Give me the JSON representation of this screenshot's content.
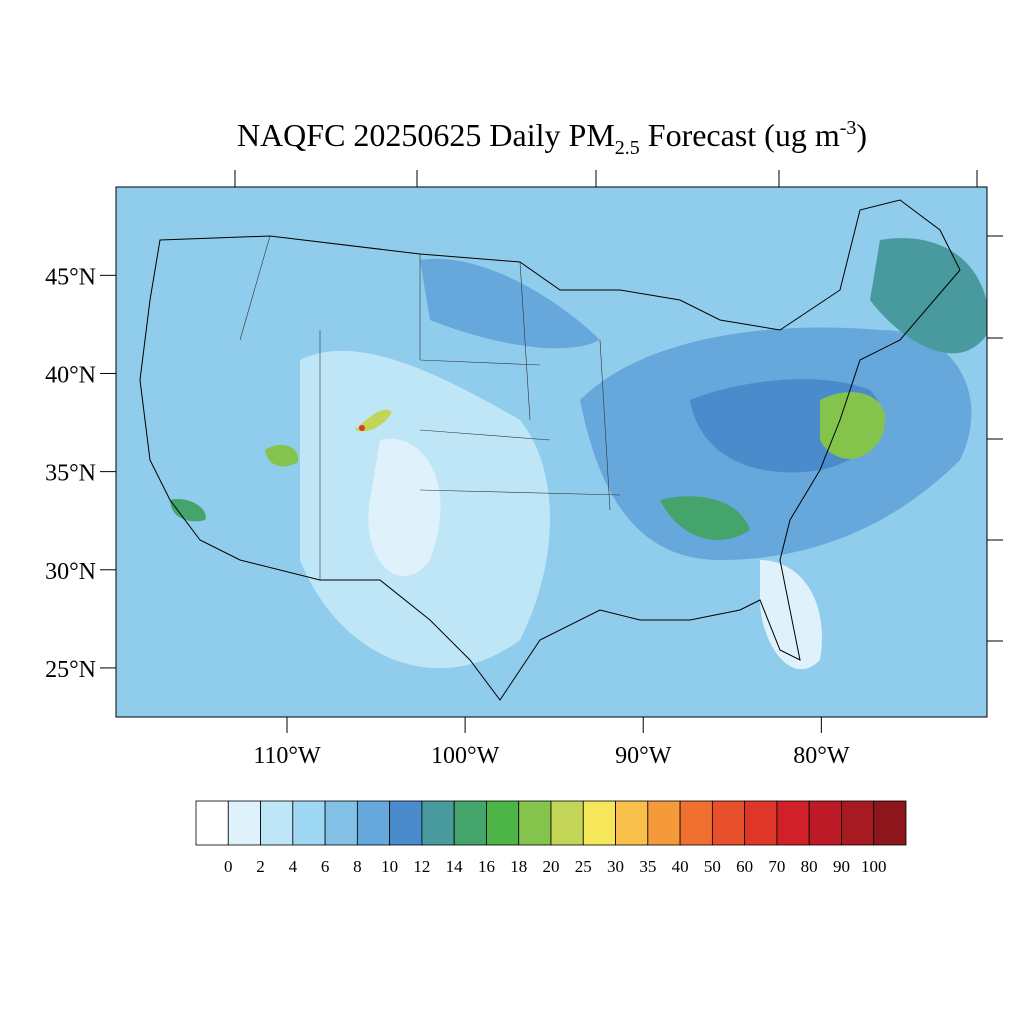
{
  "chart_data": {
    "type": "map",
    "title": {
      "main": "NAQFC 20250625 Daily PM",
      "subscript": "2.5",
      "middle": " Forecast (ug m",
      "superscript": "-3",
      "end": ")"
    },
    "xlim": [
      -119.6,
      -70.7
    ],
    "ylim": [
      22.5,
      49.5
    ],
    "yticks": [
      {
        "value": 25,
        "label": "25°N"
      },
      {
        "value": 30,
        "label": "30°N"
      },
      {
        "value": 35,
        "label": "35°N"
      },
      {
        "value": 40,
        "label": "40°N"
      },
      {
        "value": 45,
        "label": "45°N"
      }
    ],
    "xticks": [
      {
        "value": -110,
        "label": "110°W"
      },
      {
        "value": -100,
        "label": "100°W"
      },
      {
        "value": -90,
        "label": "90°W"
      },
      {
        "value": -80,
        "label": "80°W"
      }
    ],
    "colorbar": {
      "levels": [
        0,
        2,
        4,
        6,
        8,
        10,
        12,
        14,
        16,
        18,
        20,
        25,
        30,
        35,
        40,
        50,
        60,
        70,
        80,
        90,
        100
      ],
      "colors": [
        "#ffffff",
        "#dff2fb",
        "#bfe6f7",
        "#9fd8f3",
        "#82c0e6",
        "#66a8dc",
        "#4a8ccb",
        "#489a9e",
        "#45a36c",
        "#4db548",
        "#84c44c",
        "#c3d556",
        "#f5e65a",
        "#f8bf4a",
        "#f59a3a",
        "#f07030",
        "#e8502c",
        "#de3628",
        "#d22028",
        "#bc1a26",
        "#a81a22",
        "#8c161c"
      ]
    }
  }
}
